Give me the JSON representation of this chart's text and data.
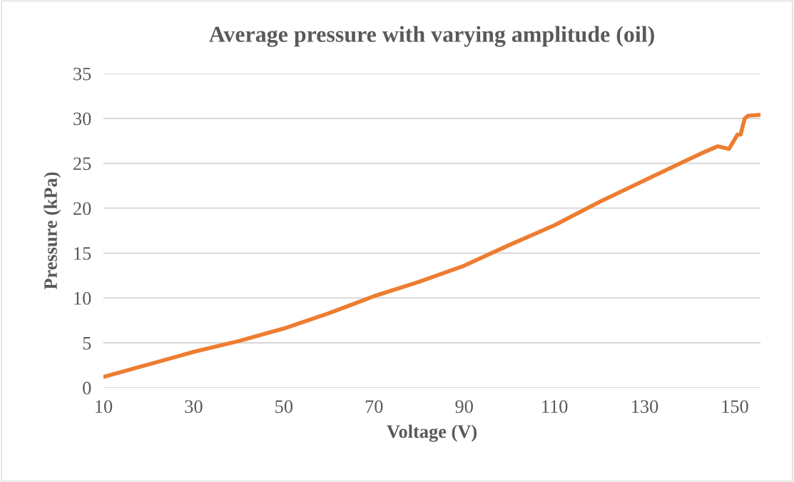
{
  "chart_data": {
    "type": "line",
    "title": "Average pressure with varying amplitude (oil)",
    "xlabel": "Voltage (V)",
    "ylabel": "Pressure (kPa)",
    "x": [
      10,
      20,
      30,
      40,
      50,
      60,
      70,
      80,
      90,
      100,
      110,
      120,
      130,
      140,
      143,
      146.2,
      148.7,
      150.6,
      151.3,
      152.2,
      153.0,
      155.7
    ],
    "series": [
      {
        "color": "#ed7d31",
        "values": [
          1.2,
          2.6,
          4.0,
          5.2,
          6.6,
          8.3,
          10.2,
          11.8,
          13.6,
          15.9,
          18.1,
          20.7,
          23.1,
          25.5,
          26.2,
          26.9,
          26.6,
          28.2,
          28.2,
          30.0,
          30.3,
          30.4
        ]
      }
    ],
    "xlim": [
      10,
      155.7
    ],
    "xticks": [
      10,
      30,
      50,
      70,
      90,
      110,
      130,
      150
    ],
    "ylim": [
      0,
      35
    ],
    "yticks": [
      0,
      5,
      10,
      15,
      20,
      25,
      30,
      35
    ],
    "grid": "y",
    "marker": "none",
    "line_style": "solid"
  }
}
